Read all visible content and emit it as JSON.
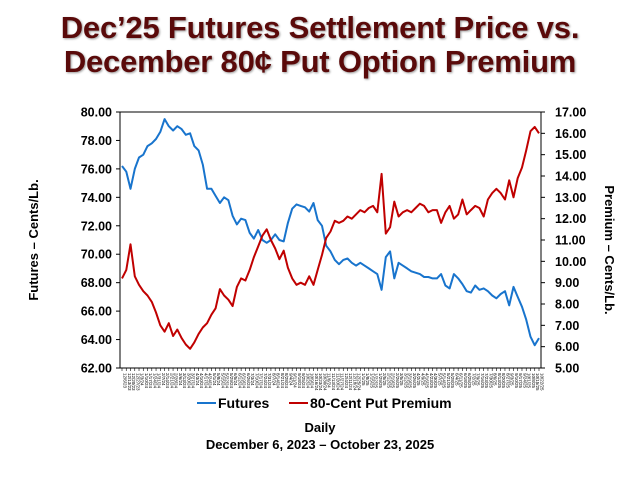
{
  "chart_data": {
    "type": "line",
    "title": [
      "Dec’25 Futures Settlement Price vs.",
      "December 80¢ Put Option Premium"
    ],
    "xlabel": "Daily",
    "subtitle": "December 6, 2023 – October 23, 2025",
    "ylabel_left": "Futures – Cents/Lb.",
    "ylabel_right": "Premium – Cents/Lb.",
    "ylim_left": [
      62,
      80
    ],
    "ylim_right": [
      5,
      17
    ],
    "yticks_left": [
      "80.00",
      "78.00",
      "76.00",
      "74.00",
      "72.00",
      "70.00",
      "68.00",
      "66.00",
      "64.00",
      "62.00"
    ],
    "yticks_right": [
      "17.00",
      "16.00",
      "15.00",
      "14.00",
      "13.00",
      "12.00",
      "11.00",
      "10.00",
      "9.00",
      "8.00",
      "7.00",
      "6.00",
      "5.00"
    ],
    "grid": false,
    "legend_position": "bottom",
    "x_dates": [
      "12/6/23",
      "12/13/23",
      "12/20/23",
      "12/27/23",
      "1/3/24",
      "1/10/24",
      "1/17/24",
      "1/24/24",
      "1/31/24",
      "2/7/24",
      "2/14/24",
      "2/21/24",
      "2/28/24",
      "3/6/24",
      "3/13/24",
      "3/20/24",
      "3/27/24",
      "4/3/24",
      "4/10/24",
      "4/17/24",
      "4/24/24",
      "5/1/24",
      "5/8/24",
      "5/15/24",
      "5/22/24",
      "5/29/24",
      "6/5/24",
      "6/12/24",
      "6/19/24",
      "6/26/24",
      "7/3/24",
      "7/10/24",
      "7/17/24",
      "7/24/24",
      "7/31/24",
      "8/7/24",
      "8/14/24",
      "8/21/24",
      "8/28/24",
      "9/4/24",
      "9/11/24",
      "9/18/24",
      "9/25/24",
      "10/2/24",
      "10/9/24",
      "10/16/24",
      "10/23/24",
      "10/30/24",
      "11/6/24",
      "11/13/24",
      "11/20/24",
      "11/27/24",
      "12/4/24",
      "12/11/24",
      "12/18/24",
      "12/25/24",
      "1/1/25",
      "1/8/25",
      "1/15/25",
      "1/22/25",
      "1/29/25",
      "2/5/25",
      "2/12/25",
      "2/19/25",
      "2/26/25",
      "3/5/25",
      "3/12/25",
      "3/19/25",
      "3/26/25",
      "4/2/25",
      "4/9/25",
      "4/16/25",
      "4/23/25",
      "4/30/25",
      "5/7/25",
      "5/14/25",
      "5/21/25",
      "5/28/25",
      "6/4/25",
      "6/11/25",
      "6/18/25",
      "6/25/25",
      "7/2/25",
      "7/9/25",
      "7/16/25",
      "7/23/25",
      "7/30/25",
      "8/6/25",
      "8/13/25",
      "8/20/25",
      "8/27/25",
      "9/3/25",
      "9/10/25",
      "9/17/25",
      "9/24/25",
      "10/1/25",
      "10/8/25",
      "10/15/25",
      "10/22/25"
    ],
    "series": [
      {
        "name": "Futures",
        "axis": "left",
        "color": "#1874cd",
        "values": [
          76.2,
          75.8,
          74.6,
          76.0,
          76.8,
          77.0,
          77.6,
          77.8,
          78.1,
          78.6,
          79.5,
          79.0,
          78.7,
          79.0,
          78.8,
          78.4,
          78.5,
          77.6,
          77.3,
          76.3,
          74.6,
          74.6,
          74.1,
          73.6,
          74.0,
          73.8,
          72.7,
          72.1,
          72.5,
          72.4,
          71.5,
          71.1,
          71.7,
          71.0,
          70.8,
          71.0,
          71.4,
          71.0,
          70.9,
          72.2,
          73.2,
          73.5,
          73.4,
          73.3,
          73.0,
          73.6,
          72.4,
          72.0,
          70.6,
          70.2,
          69.6,
          69.3,
          69.6,
          69.7,
          69.4,
          69.2,
          69.4,
          69.2,
          69.0,
          68.8,
          68.6,
          67.5,
          69.8,
          70.2,
          68.3,
          69.4,
          69.2,
          69.0,
          68.8,
          68.7,
          68.6,
          68.4,
          68.4,
          68.3,
          68.3,
          68.6,
          67.8,
          67.6,
          68.6,
          68.3,
          67.9,
          67.4,
          67.3,
          67.8,
          67.5,
          67.6,
          67.4,
          67.1,
          66.9,
          67.2,
          67.4,
          66.4,
          67.7,
          67.0,
          66.3,
          65.4,
          64.2,
          63.6,
          64.1
        ]
      },
      {
        "name": "80-Cent Put Premium",
        "axis": "right",
        "color": "#c00000",
        "values": [
          9.2,
          9.6,
          10.8,
          9.3,
          8.9,
          8.6,
          8.4,
          8.1,
          7.6,
          7.0,
          6.7,
          7.1,
          6.5,
          6.8,
          6.4,
          6.1,
          5.9,
          6.2,
          6.6,
          6.9,
          7.1,
          7.5,
          7.8,
          8.7,
          8.4,
          8.2,
          7.9,
          8.8,
          9.2,
          9.1,
          9.6,
          10.2,
          10.7,
          11.2,
          11.5,
          11.0,
          10.6,
          10.1,
          10.5,
          9.7,
          9.2,
          8.9,
          9.0,
          8.9,
          9.3,
          8.9,
          9.6,
          10.3,
          11.1,
          11.4,
          11.9,
          11.8,
          11.9,
          12.1,
          12.0,
          12.2,
          12.4,
          12.3,
          12.5,
          12.6,
          12.3,
          14.1,
          11.3,
          11.6,
          12.8,
          12.1,
          12.3,
          12.4,
          12.3,
          12.5,
          12.7,
          12.6,
          12.3,
          12.4,
          12.4,
          11.8,
          12.3,
          12.6,
          12.0,
          12.2,
          12.9,
          12.2,
          12.4,
          12.6,
          12.5,
          12.1,
          12.9,
          13.2,
          13.4,
          13.2,
          12.9,
          13.8,
          13.0,
          13.9,
          14.4,
          15.2,
          16.1,
          16.3,
          16.0
        ]
      }
    ]
  },
  "legend": {
    "futures_label": "Futures",
    "premium_label": "80-Cent Put Premium"
  }
}
